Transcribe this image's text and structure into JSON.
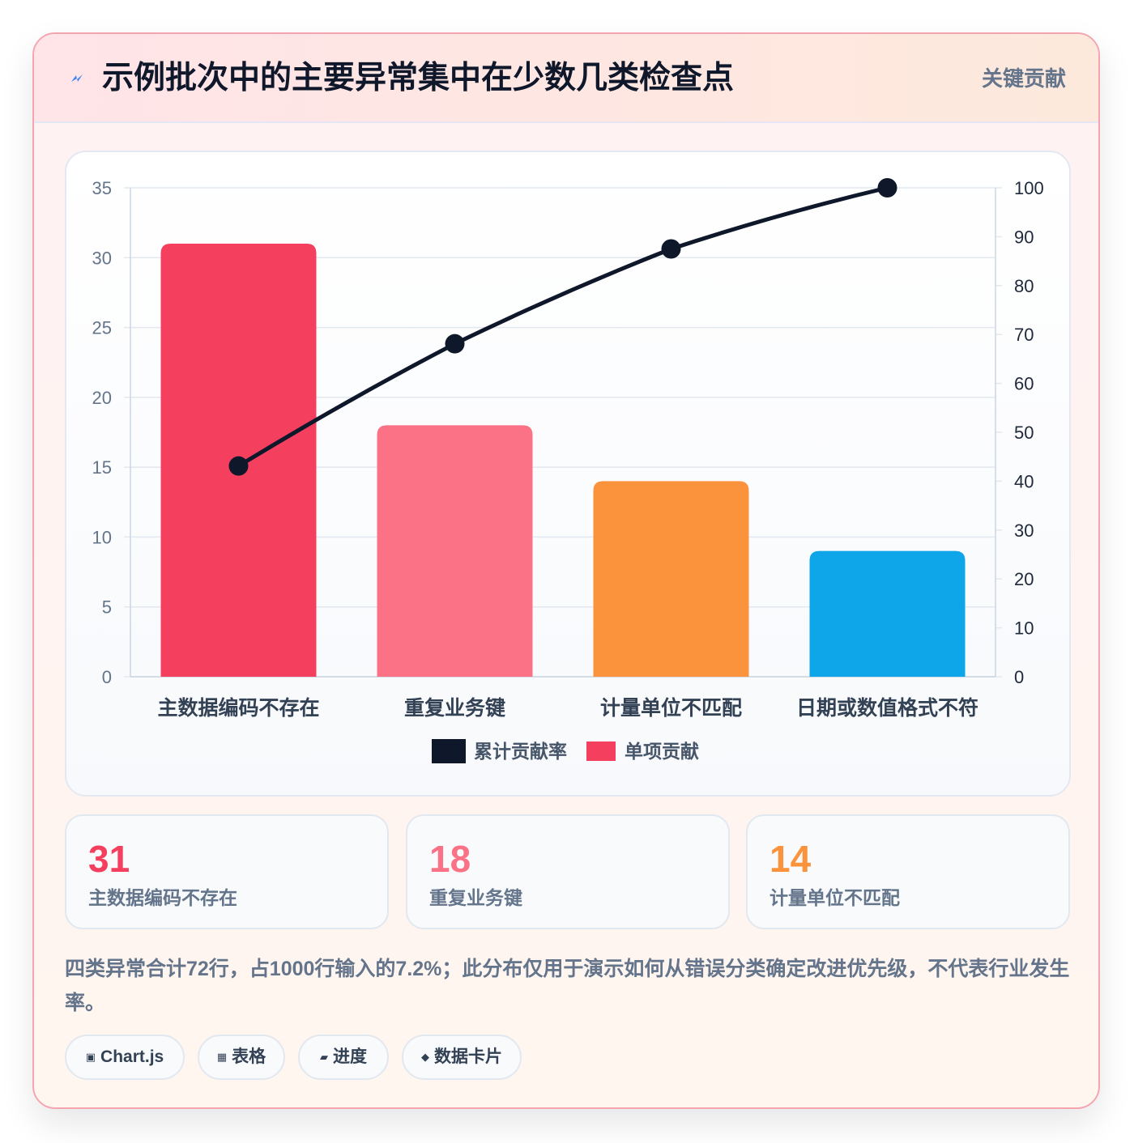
{
  "header": {
    "title": "示例批次中的主要异常集中在少数几类检查点",
    "badge": "关键贡献",
    "icon": "lightning-icon"
  },
  "chart_data": {
    "type": "bar",
    "categories": [
      "主数据编码不存在",
      "重复业务键",
      "计量单位不匹配",
      "日期或数值格式不符"
    ],
    "series": [
      {
        "name": "单项贡献",
        "type": "bar",
        "axis": "left",
        "values": [
          31,
          18,
          14,
          9
        ],
        "colors": [
          "#f43f5e",
          "#fb7185",
          "#fb923c",
          "#0ea5e9"
        ]
      },
      {
        "name": "累计贡献率",
        "type": "line",
        "axis": "right",
        "values": [
          43.1,
          68.1,
          87.5,
          100
        ],
        "color": "#0f172a"
      }
    ],
    "y_left": {
      "min": 0,
      "max": 35,
      "ticks": [
        "0",
        "5",
        "10",
        "15",
        "20",
        "25",
        "30",
        "35"
      ]
    },
    "y_right": {
      "min": 0,
      "max": 100,
      "ticks": [
        "0",
        "10",
        "20",
        "30",
        "40",
        "50",
        "60",
        "70",
        "80",
        "90",
        "100"
      ]
    },
    "grid": true,
    "legend_position": "bottom"
  },
  "stats": [
    {
      "value": "31",
      "label": "主数据编码不存在",
      "color": "#f43f5e"
    },
    {
      "value": "18",
      "label": "重复业务键",
      "color": "#fb7185"
    },
    {
      "value": "14",
      "label": "计量单位不匹配",
      "color": "#fb923c"
    }
  ],
  "note": "四类异常合计72行，占1000行输入的7.2%；此分布仅用于演示如何从错误分类确定改进优先级，不代表行业发生率。",
  "tags": [
    {
      "icon": "▣",
      "label": "Chart.js",
      "icon_name": "chart-icon"
    },
    {
      "icon": "▦",
      "label": "表格",
      "icon_name": "table-icon"
    },
    {
      "icon": "▰",
      "label": "进度",
      "icon_name": "progress-icon"
    },
    {
      "icon": "◆",
      "label": "数据卡片",
      "icon_name": "card-icon"
    }
  ]
}
